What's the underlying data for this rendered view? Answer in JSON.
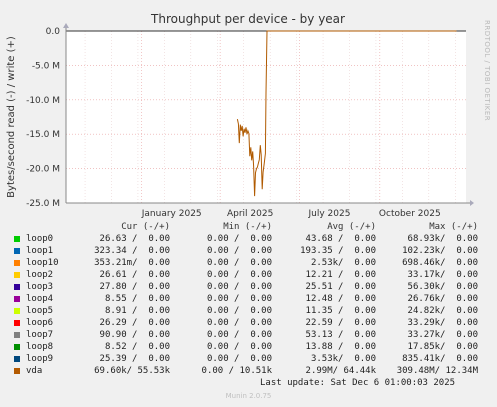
{
  "chart_data": {
    "type": "line",
    "title": "Throughput per device - by year",
    "ylabel": "Bytes/second read (-) / write (+)",
    "side_label": "RRDTOOL / TOBI OETIKER",
    "y_ticks": [
      {
        "v": 0,
        "label": "0.0"
      },
      {
        "v": -5,
        "label": "-5.0 M"
      },
      {
        "v": -10,
        "label": "-10.0 M"
      },
      {
        "v": -15,
        "label": "-15.0 M"
      },
      {
        "v": -20,
        "label": "-20.0 M"
      },
      {
        "v": -25,
        "label": "-25.0 M"
      }
    ],
    "ylim": [
      -25,
      0
    ],
    "x_ticks": [
      {
        "t": 0.333,
        "label": "January 2025"
      },
      {
        "t": 0.58,
        "label": "April 2025"
      },
      {
        "t": 0.83,
        "label": "July 2025"
      },
      {
        "t": 1.083,
        "label": "October 2025"
      }
    ],
    "xlim": [
      0,
      1.26
    ],
    "grid": true,
    "series": [
      {
        "name": "vda",
        "color": "#b05a00",
        "points": [
          [
            0.54,
            -12.8
          ],
          [
            0.543,
            -13.5
          ],
          [
            0.546,
            -16.3
          ],
          [
            0.549,
            -13.6
          ],
          [
            0.552,
            -14.5
          ],
          [
            0.555,
            -13.8
          ],
          [
            0.558,
            -15.3
          ],
          [
            0.561,
            -14.2
          ],
          [
            0.564,
            -14.8
          ],
          [
            0.567,
            -14.0
          ],
          [
            0.57,
            -15.0
          ],
          [
            0.573,
            -14.5
          ],
          [
            0.576,
            -14.9
          ],
          [
            0.579,
            -18.2
          ],
          [
            0.582,
            -16.9
          ],
          [
            0.585,
            -18.8
          ],
          [
            0.588,
            -17.5
          ],
          [
            0.591,
            -19.6
          ],
          [
            0.594,
            -24.0
          ],
          [
            0.597,
            -20.6
          ],
          [
            0.6,
            -20.0
          ],
          [
            0.603,
            -19.8
          ],
          [
            0.606,
            -19.2
          ],
          [
            0.609,
            -18.7
          ],
          [
            0.612,
            -16.6
          ],
          [
            0.615,
            -18.0
          ],
          [
            0.618,
            -23.0
          ],
          [
            0.621,
            -20.5
          ],
          [
            0.624,
            -19.4
          ],
          [
            0.628,
            -17.8
          ],
          [
            0.63,
            -9.0
          ],
          [
            0.633,
            0.0
          ],
          [
            1.23,
            0.0
          ]
        ]
      }
    ]
  },
  "legend": {
    "headers": {
      "cur": "Cur (-/+)",
      "min": "Min (-/+)",
      "avg": "Avg (-/+)",
      "max": "Max (-/+)"
    },
    "rows": [
      {
        "name": "loop0",
        "color": "#00cc00",
        "cur": "26.63 /  0.00",
        "min": "0.00 /  0.00",
        "avg": "43.68 /  0.00",
        "max": "68.93k/  0.00"
      },
      {
        "name": "loop1",
        "color": "#0066b3",
        "cur": "323.34 /  0.00",
        "min": "0.00 /  0.00",
        "avg": "193.35 /  0.00",
        "max": "102.23k/  0.00"
      },
      {
        "name": "loop10",
        "color": "#ff8000",
        "cur": "353.21m/  0.00",
        "min": "0.00 /  0.00",
        "avg": "2.53k/  0.00",
        "max": "698.46k/  0.00"
      },
      {
        "name": "loop2",
        "color": "#ffcc00",
        "cur": "26.61 /  0.00",
        "min": "0.00 /  0.00",
        "avg": "12.21 /  0.00",
        "max": "33.17k/  0.00"
      },
      {
        "name": "loop3",
        "color": "#330099",
        "cur": "27.80 /  0.00",
        "min": "0.00 /  0.00",
        "avg": "25.51 /  0.00",
        "max": "56.30k/  0.00"
      },
      {
        "name": "loop4",
        "color": "#990099",
        "cur": "8.55 /  0.00",
        "min": "0.00 /  0.00",
        "avg": "12.48 /  0.00",
        "max": "26.76k/  0.00"
      },
      {
        "name": "loop5",
        "color": "#ccff00",
        "cur": "8.91 /  0.00",
        "min": "0.00 /  0.00",
        "avg": "11.35 /  0.00",
        "max": "24.82k/  0.00"
      },
      {
        "name": "loop6",
        "color": "#ff0000",
        "cur": "26.29 /  0.00",
        "min": "0.00 /  0.00",
        "avg": "22.59 /  0.00",
        "max": "33.29k/  0.00"
      },
      {
        "name": "loop7",
        "color": "#808080",
        "cur": "90.90 /  0.00",
        "min": "0.00 /  0.00",
        "avg": "53.13 /  0.00",
        "max": "33.27k/  0.00"
      },
      {
        "name": "loop8",
        "color": "#008f00",
        "cur": "8.52 /  0.00",
        "min": "0.00 /  0.00",
        "avg": "13.88 /  0.00",
        "max": "17.85k/  0.00"
      },
      {
        "name": "loop9",
        "color": "#00487d",
        "cur": "25.39 /  0.00",
        "min": "0.00 /  0.00",
        "avg": "3.53k/  0.00",
        "max": "835.41k/  0.00"
      },
      {
        "name": "vda",
        "color": "#b35a00",
        "cur": "69.60k/ 55.53k",
        "min": "0.00 / 10.51k",
        "avg": "2.99M/ 64.44k",
        "max": "309.48M/ 12.34M"
      }
    ]
  },
  "last_update": "Last update: Sat Dec  6 01:00:03 2025",
  "footer": "Munin 2.0.75"
}
